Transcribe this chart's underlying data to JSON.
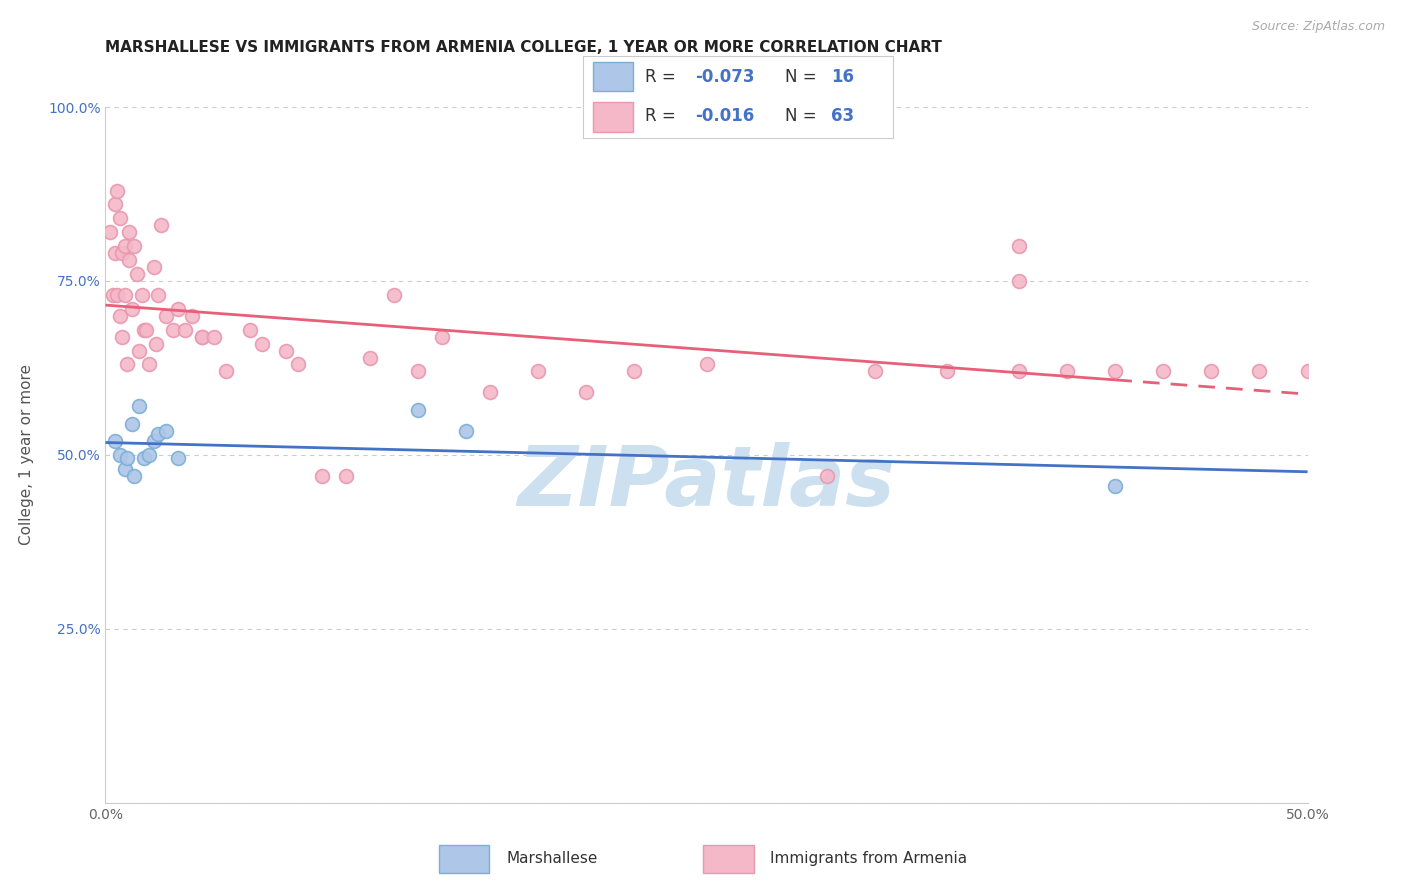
{
  "title": "MARSHALLESE VS IMMIGRANTS FROM ARMENIA COLLEGE, 1 YEAR OR MORE CORRELATION CHART",
  "source": "Source: ZipAtlas.com",
  "ylabel": "College, 1 year or more",
  "xlim": [
    0.0,
    0.5
  ],
  "ylim": [
    0.0,
    1.0
  ],
  "xtick_positions": [
    0.0,
    0.05,
    0.1,
    0.15,
    0.2,
    0.25,
    0.3,
    0.35,
    0.4,
    0.45,
    0.5
  ],
  "xticklabels": [
    "0.0%",
    "",
    "",
    "",
    "",
    "",
    "",
    "",
    "",
    "",
    "50.0%"
  ],
  "ytick_positions": [
    0.0,
    0.25,
    0.5,
    0.75,
    1.0
  ],
  "yticklabels": [
    "",
    "25.0%",
    "50.0%",
    "75.0%",
    "100.0%"
  ],
  "grid_color": "#cccccc",
  "background_color": "#ffffff",
  "marshallese_x": [
    0.004,
    0.006,
    0.008,
    0.009,
    0.011,
    0.012,
    0.014,
    0.016,
    0.018,
    0.02,
    0.022,
    0.025,
    0.03,
    0.13,
    0.15,
    0.42
  ],
  "marshallese_y": [
    0.52,
    0.5,
    0.48,
    0.495,
    0.545,
    0.47,
    0.57,
    0.495,
    0.5,
    0.52,
    0.53,
    0.535,
    0.495,
    0.565,
    0.535,
    0.455
  ],
  "armenia_x": [
    0.002,
    0.003,
    0.004,
    0.004,
    0.005,
    0.005,
    0.006,
    0.006,
    0.007,
    0.007,
    0.008,
    0.008,
    0.009,
    0.01,
    0.01,
    0.011,
    0.012,
    0.013,
    0.014,
    0.015,
    0.016,
    0.017,
    0.018,
    0.02,
    0.021,
    0.022,
    0.023,
    0.025,
    0.028,
    0.03,
    0.033,
    0.036,
    0.04,
    0.04,
    0.045,
    0.05,
    0.06,
    0.065,
    0.075,
    0.08,
    0.09,
    0.1,
    0.11,
    0.12,
    0.13,
    0.14,
    0.16,
    0.18,
    0.2,
    0.22,
    0.25,
    0.3,
    0.32,
    0.35,
    0.38,
    0.4,
    0.42,
    0.44,
    0.46,
    0.48,
    0.5,
    0.38,
    0.38
  ],
  "armenia_y": [
    0.82,
    0.73,
    0.86,
    0.79,
    0.88,
    0.73,
    0.7,
    0.84,
    0.67,
    0.79,
    0.73,
    0.8,
    0.63,
    0.82,
    0.78,
    0.71,
    0.8,
    0.76,
    0.65,
    0.73,
    0.68,
    0.68,
    0.63,
    0.77,
    0.66,
    0.73,
    0.83,
    0.7,
    0.68,
    0.71,
    0.68,
    0.7,
    0.67,
    0.67,
    0.67,
    0.62,
    0.68,
    0.66,
    0.65,
    0.63,
    0.47,
    0.47,
    0.64,
    0.73,
    0.62,
    0.67,
    0.59,
    0.62,
    0.59,
    0.62,
    0.63,
    0.47,
    0.62,
    0.62,
    0.62,
    0.62,
    0.62,
    0.62,
    0.62,
    0.62,
    0.62,
    0.8,
    0.75
  ],
  "blue_line_color": "#4472c4",
  "pink_line_color": "#e85f7a",
  "pink_line_solid_end": 0.42,
  "blue_dot_facecolor": "#aec6e8",
  "pink_dot_facecolor": "#f4b8c8",
  "blue_dot_edgecolor": "#7bafd4",
  "pink_dot_edgecolor": "#e898b0",
  "dot_size": 100,
  "line_width": 2.0,
  "watermark_text": "ZIPatlas",
  "watermark_color": "#cce0f0",
  "watermark_fontsize": 60,
  "legend_color": "#4472c4"
}
